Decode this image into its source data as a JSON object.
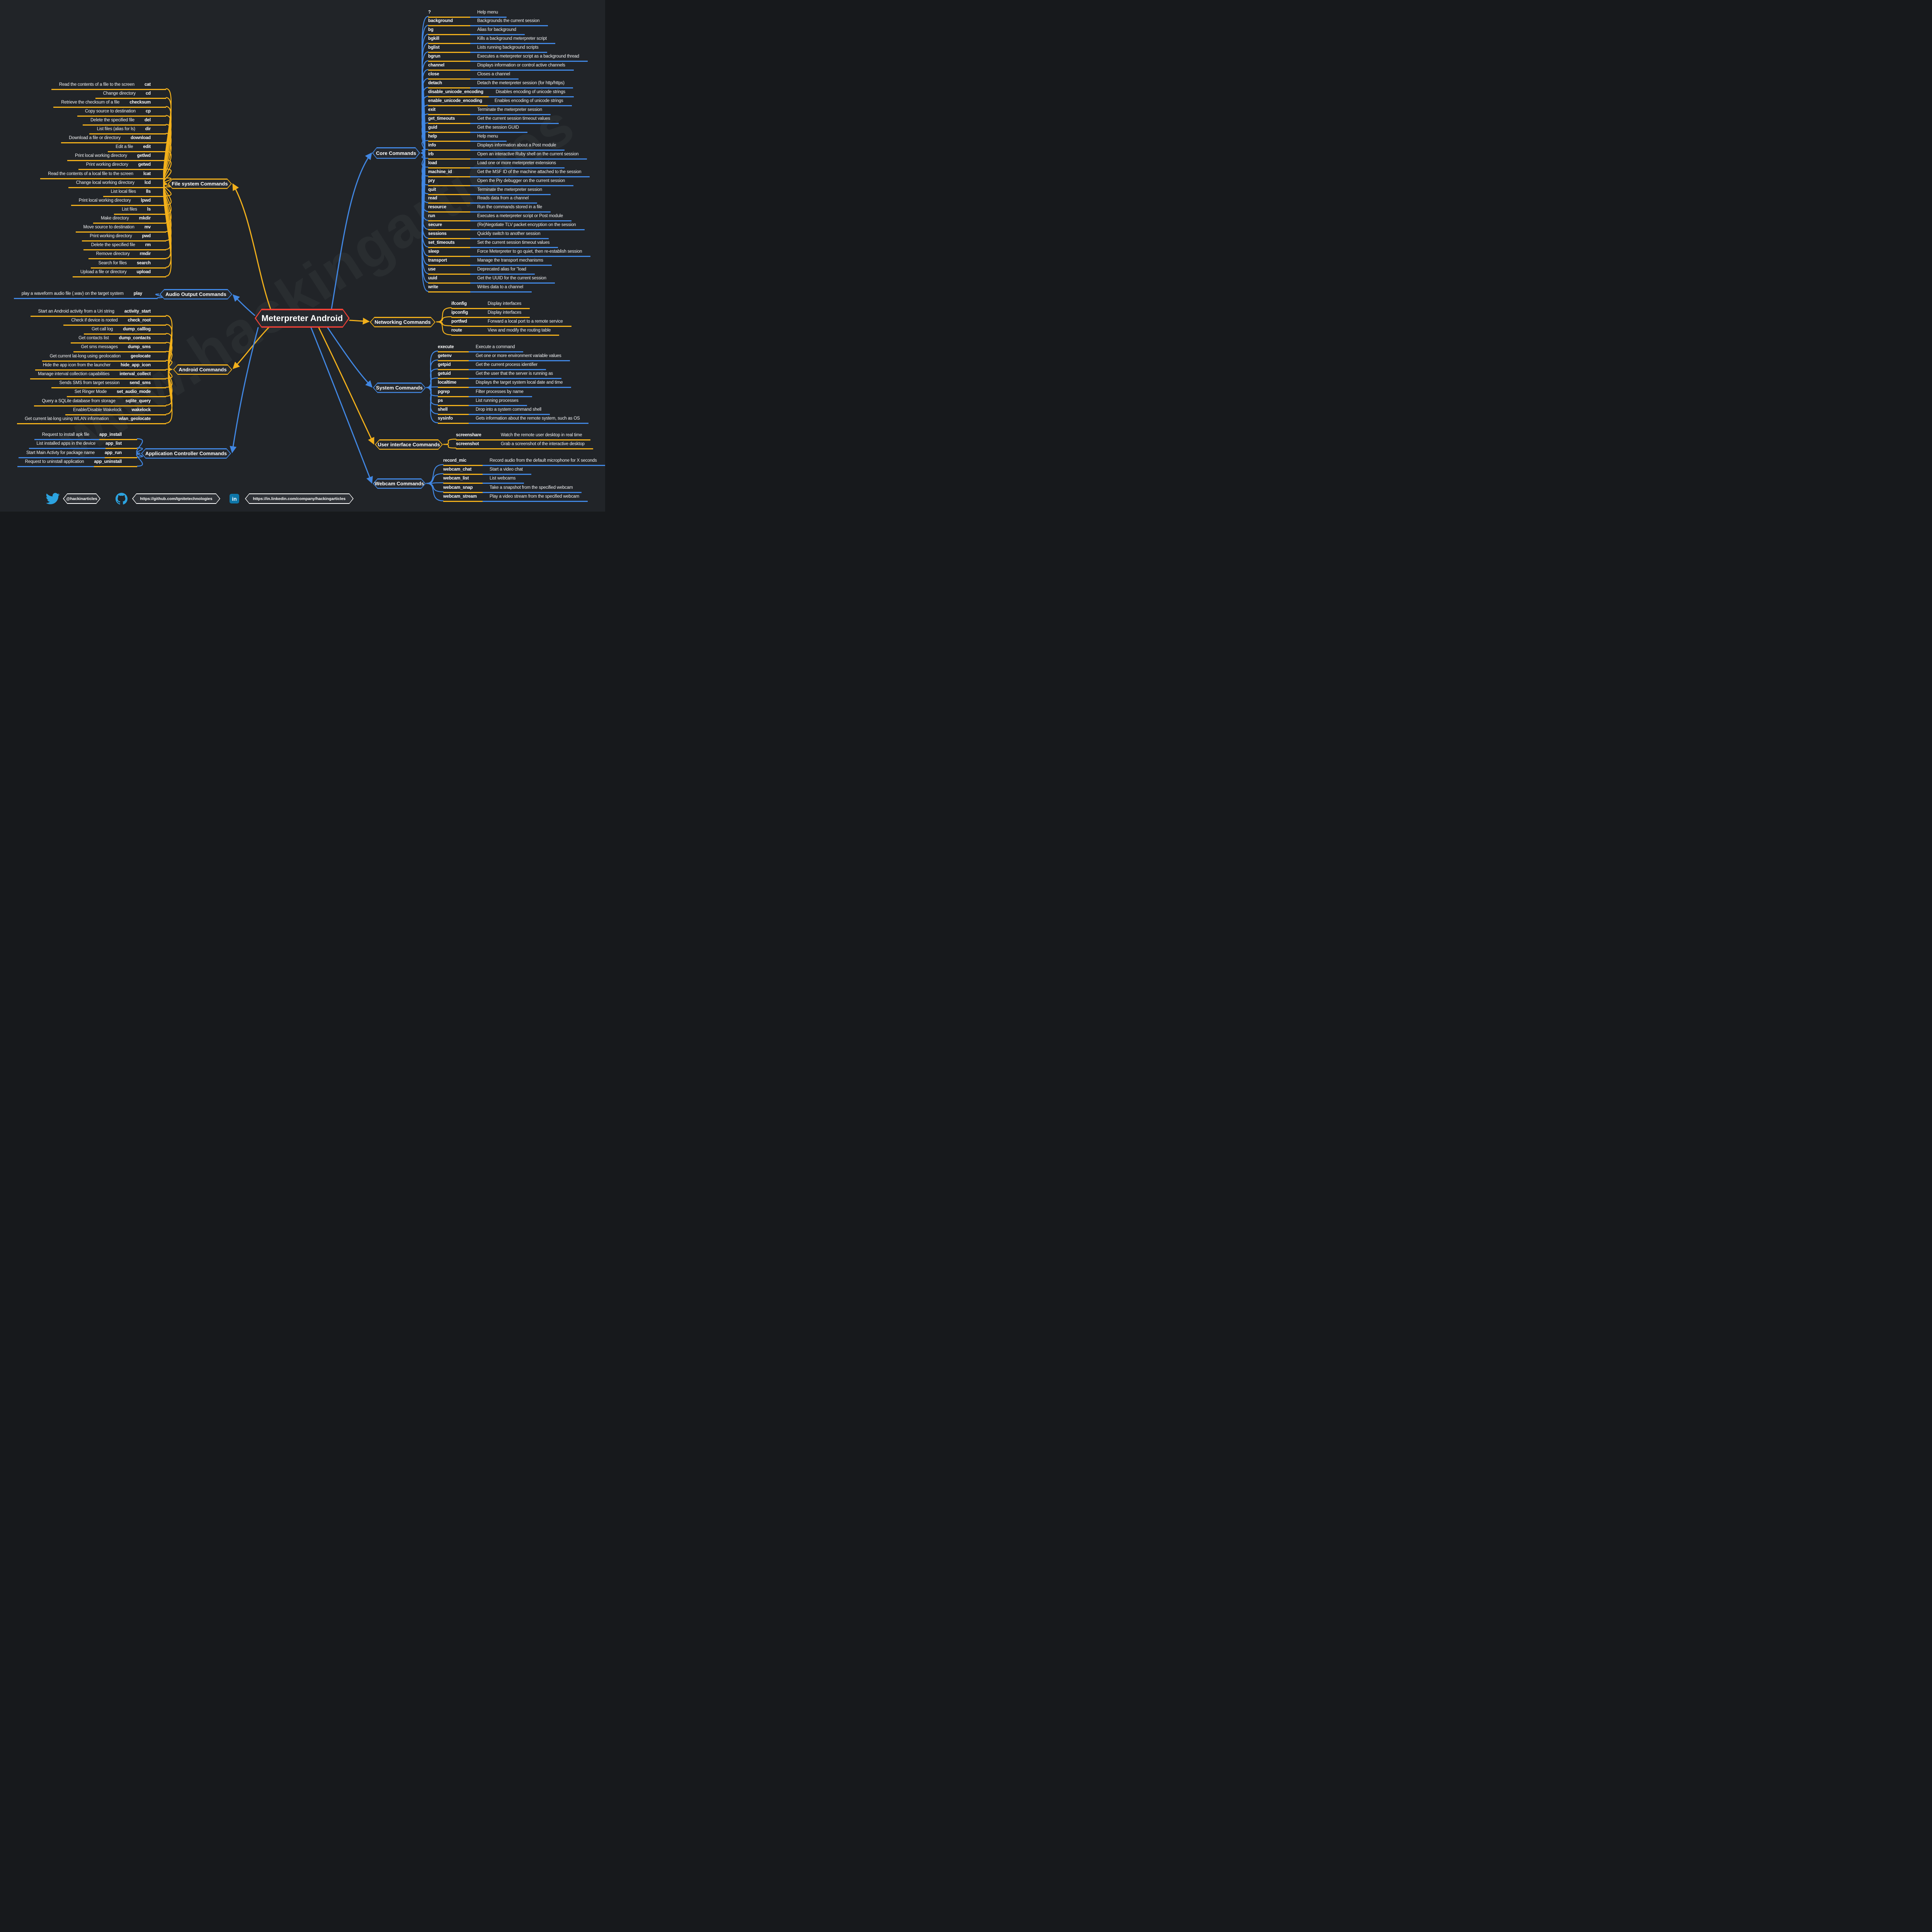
{
  "title": "Meterpreter Android",
  "watermark": "www.hackingarticles",
  "colors": {
    "background": "#212428",
    "panel": "#26292e",
    "yellow": "#f2b01b",
    "blue": "#4187e3",
    "red": "#ee4036",
    "social_blue": "#2ca3e0",
    "linkedin_blue": "#0e76a8",
    "text": "#ffffff"
  },
  "categories": [
    {
      "id": "core",
      "label": "Core Commands",
      "color": "blue",
      "side": "right",
      "commands": [
        {
          "cmd": "?",
          "desc": "Help menu"
        },
        {
          "cmd": "background",
          "desc": "Backgrounds the current session"
        },
        {
          "cmd": "bg",
          "desc": "Alias for background"
        },
        {
          "cmd": "bgkill",
          "desc": "Kills a background meterpreter script"
        },
        {
          "cmd": "bglist",
          "desc": "Lists running background scripts"
        },
        {
          "cmd": "bgrun",
          "desc": "Executes a meterpreter script as a background thread"
        },
        {
          "cmd": "channel",
          "desc": "Displays information or control active channels"
        },
        {
          "cmd": "close",
          "desc": "Closes a channel"
        },
        {
          "cmd": "detach",
          "desc": "Detach the meterpreter session (for http/https)"
        },
        {
          "cmd": "disable_unicode_encoding",
          "desc": "Disables encoding of unicode strings"
        },
        {
          "cmd": "enable_unicode_encoding",
          "desc": "Enables encoding of unicode strings"
        },
        {
          "cmd": "exit",
          "desc": "Terminate the meterpreter session"
        },
        {
          "cmd": "get_timeouts",
          "desc": "Get the current session timeout values"
        },
        {
          "cmd": "guid",
          "desc": "Get the session GUID"
        },
        {
          "cmd": "help",
          "desc": "Help menu"
        },
        {
          "cmd": "info",
          "desc": "Displays information about a Post module"
        },
        {
          "cmd": "irb",
          "desc": "Open an interactive Ruby shell on the current session"
        },
        {
          "cmd": "load",
          "desc": "Load one or more meterpreter extensions"
        },
        {
          "cmd": "machine_id",
          "desc": "Get the MSF ID of the machine attached to the session"
        },
        {
          "cmd": "pry",
          "desc": "Open the Pry debugger on the current session"
        },
        {
          "cmd": "quit",
          "desc": "Terminate the meterpreter session"
        },
        {
          "cmd": "read",
          "desc": "Reads data from a channel"
        },
        {
          "cmd": "resource",
          "desc": "Run the commands stored in a file"
        },
        {
          "cmd": "run",
          "desc": "Executes a meterpreter script or Post module"
        },
        {
          "cmd": "secure",
          "desc": "(Re)Negotiate TLV packet encryption on the session"
        },
        {
          "cmd": "sessions",
          "desc": "Quickly switch to another session"
        },
        {
          "cmd": "set_timeouts",
          "desc": "Set the current session timeout values"
        },
        {
          "cmd": "sleep",
          "desc": "Force Meterpreter to go quiet, then re-establish session"
        },
        {
          "cmd": "transport",
          "desc": "Manage the transport mechanisms"
        },
        {
          "cmd": "use",
          "desc": "Deprecated alias for \"load"
        },
        {
          "cmd": "uuid",
          "desc": "Get the UUID for the current session"
        },
        {
          "cmd": "write",
          "desc": "Writes data to a channel"
        }
      ]
    },
    {
      "id": "filesystem",
      "label": "File system Commands",
      "color": "yellow",
      "side": "left",
      "commands": [
        {
          "cmd": "cat",
          "desc": "Read the contents of a file to the screen"
        },
        {
          "cmd": "cd",
          "desc": "Change directory"
        },
        {
          "cmd": "checksum",
          "desc": "Retrieve the checksum of a file"
        },
        {
          "cmd": "cp",
          "desc": "Copy source to destination"
        },
        {
          "cmd": "del",
          "desc": "Delete the specified file"
        },
        {
          "cmd": "dir",
          "desc": "List files (alias for ls)"
        },
        {
          "cmd": "download",
          "desc": "Download a file or directory"
        },
        {
          "cmd": "edit",
          "desc": "Edit a file"
        },
        {
          "cmd": "getlwd",
          "desc": "Print local working directory"
        },
        {
          "cmd": "getwd",
          "desc": "Print working directory"
        },
        {
          "cmd": "lcat",
          "desc": "Read the contents of a local file to the screen"
        },
        {
          "cmd": "lcd",
          "desc": "Change local working directory"
        },
        {
          "cmd": "lls",
          "desc": "List local files"
        },
        {
          "cmd": "lpwd",
          "desc": "Print local working directory"
        },
        {
          "cmd": "ls",
          "desc": "List files"
        },
        {
          "cmd": "mkdir",
          "desc": "Make directory"
        },
        {
          "cmd": "mv",
          "desc": "Move source to destination"
        },
        {
          "cmd": "pwd",
          "desc": "Print working directory"
        },
        {
          "cmd": "rm",
          "desc": "Delete the specified file"
        },
        {
          "cmd": "rmdir",
          "desc": "Remove directory"
        },
        {
          "cmd": "search",
          "desc": "Search for files"
        },
        {
          "cmd": "upload",
          "desc": "Upload a file or directory"
        }
      ]
    },
    {
      "id": "audio",
      "label": "Audio Output Commands",
      "color": "blue",
      "side": "left",
      "commands": [
        {
          "cmd": "play",
          "desc": "play a waveform audio file (.wav) on the target system"
        }
      ]
    },
    {
      "id": "android",
      "label": "Android Commands",
      "color": "yellow",
      "side": "left",
      "commands": [
        {
          "cmd": "activity_start",
          "desc": "Start an Android activity from a Uri string"
        },
        {
          "cmd": "check_root",
          "desc": "Check if device is rooted"
        },
        {
          "cmd": "dump_calllog",
          "desc": "Get call log"
        },
        {
          "cmd": "dump_contacts",
          "desc": "Get contacts list"
        },
        {
          "cmd": "dump_sms",
          "desc": "Get sms messages"
        },
        {
          "cmd": "geolocate",
          "desc": "Get current lat-long using geolocation"
        },
        {
          "cmd": "hide_app_icon",
          "desc": "Hide the app icon from the launcher"
        },
        {
          "cmd": "interval_collect",
          "desc": "Manage interval collection capabilities"
        },
        {
          "cmd": "send_sms",
          "desc": "Sends SMS from target session"
        },
        {
          "cmd": "set_audio_mode",
          "desc": "Set Ringer Mode"
        },
        {
          "cmd": "sqlite_query",
          "desc": "Query a SQLite database from storage"
        },
        {
          "cmd": "wakelock",
          "desc": "Enable/Disable Wakelock"
        },
        {
          "cmd": "wlan_geolocate",
          "desc": "Get current lat-long using WLAN information"
        }
      ]
    },
    {
      "id": "appcontroller",
      "label": "Application Controller Commands",
      "color": "blue",
      "side": "left",
      "commands": [
        {
          "cmd": "app_install",
          "desc": "Request to install apk file"
        },
        {
          "cmd": "app_list",
          "desc": "List installed apps in the device"
        },
        {
          "cmd": "app_run",
          "desc": "Start Main Activty for package name"
        },
        {
          "cmd": "app_uninstall",
          "desc": "Request to uninstall application"
        }
      ]
    },
    {
      "id": "networking",
      "label": "Networking Commands",
      "color": "yellow",
      "side": "right",
      "commands": [
        {
          "cmd": "ifconfig",
          "desc": "Display interfaces"
        },
        {
          "cmd": "ipconfig",
          "desc": "Display interfaces"
        },
        {
          "cmd": "portfwd",
          "desc": "Forward a local port to a remote service"
        },
        {
          "cmd": "route",
          "desc": "View and modify the routing table"
        }
      ]
    },
    {
      "id": "system",
      "label": "System Commands",
      "color": "blue",
      "side": "right",
      "commands": [
        {
          "cmd": "execute",
          "desc": "Execute a command"
        },
        {
          "cmd": "getenv",
          "desc": "Get one or more environment variable values"
        },
        {
          "cmd": "getpid",
          "desc": "Get the current process identifier"
        },
        {
          "cmd": "getuid",
          "desc": "Get the user that the server is running as"
        },
        {
          "cmd": "localtime",
          "desc": "Displays the target system local date and time"
        },
        {
          "cmd": "pgrep",
          "desc": "Filter processes by name"
        },
        {
          "cmd": "ps",
          "desc": "List running processes"
        },
        {
          "cmd": "shell",
          "desc": "Drop into a system command shell"
        },
        {
          "cmd": "sysinfo",
          "desc": "Gets information about the remote system, such as OS"
        }
      ]
    },
    {
      "id": "userinterface",
      "label": "User interface Commands",
      "color": "yellow",
      "side": "right",
      "commands": [
        {
          "cmd": "screenshare",
          "desc": "Watch the remote user desktop in real time"
        },
        {
          "cmd": "screenshot",
          "desc": "Grab a screenshot of the interactive desktop"
        }
      ]
    },
    {
      "id": "webcam",
      "label": "Webcam Commands",
      "color": "blue",
      "side": "right",
      "commands": [
        {
          "cmd": "record_mic",
          "desc": "Record audio from the default microphone for X seconds"
        },
        {
          "cmd": "webcam_chat",
          "desc": "Start a video chat"
        },
        {
          "cmd": "webcam_list",
          "desc": "List webcams"
        },
        {
          "cmd": "webcam_snap",
          "desc": "Take a snapshot from the specified webcam"
        },
        {
          "cmd": "webcam_stream",
          "desc": "Play a video stream from the specified webcam"
        }
      ]
    }
  ],
  "footer": {
    "items": [
      {
        "icon": "twitter-bird-icon",
        "label": "@hackinarticles"
      },
      {
        "icon": "github-octocat-icon",
        "label": "https://github.com/Ignitetechnologies"
      },
      {
        "icon": "linkedin-icon",
        "label": "https://in.linkedin.com/company/hackingarticles"
      }
    ]
  }
}
